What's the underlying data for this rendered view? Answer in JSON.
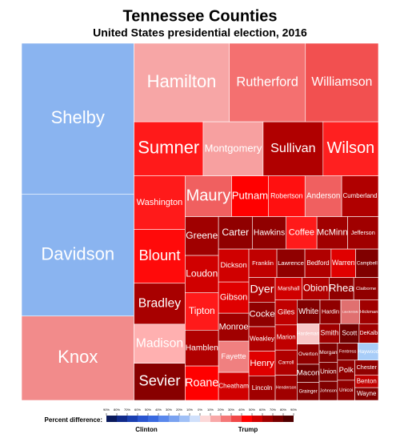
{
  "chart_data": {
    "type": "treemap",
    "title": "Tennessee Counties",
    "subtitle": "United States presidential election, 2016",
    "categories": [
      "Shelby",
      "Davidson",
      "Knox",
      "Hamilton",
      "Rutherford",
      "Williamson",
      "Sumner",
      "Montgomery",
      "Sullivan",
      "Wilson",
      "Washington",
      "Blount",
      "Bradley",
      "Madison",
      "Sevier",
      "Maury",
      "Putnam",
      "Robertson",
      "Anderson",
      "Cumberland",
      "Greene",
      "Loudon",
      "Tipton",
      "Hamblen",
      "Roane",
      "Carter",
      "Hawkins",
      "Coffee",
      "McMinn",
      "Jefferson",
      "Dickson",
      "Gibson",
      "Monroe",
      "Fayette",
      "Cheatham",
      "Franklin",
      "Lawrence",
      "Bedford",
      "Warren",
      "Campbell",
      "Dyer",
      "Cocke",
      "Weakley",
      "Henry",
      "Lincoln",
      "Marshall",
      "Obion",
      "Rhea",
      "Claiborne",
      "Giles",
      "Marion",
      "Carroll",
      "Henderson",
      "White",
      "Hardin",
      "Lauderdale",
      "Hickman",
      "Hardeman",
      "Overton",
      "Macon",
      "Grainger",
      "Smith",
      "Scott",
      "DeKalb",
      "Morgan",
      "Union",
      "Johnson",
      "Fentress",
      "Haywood",
      "Polk",
      "Unicoi",
      "Chester",
      "Benton",
      "Wayne"
    ],
    "values": [
      340,
      275,
      190,
      150,
      120,
      115,
      75,
      65,
      65,
      60,
      55,
      55,
      42,
      40,
      38,
      38,
      30,
      30,
      30,
      30,
      26,
      25,
      25,
      24,
      23,
      22,
      22,
      20,
      20,
      20,
      20,
      19,
      17,
      19,
      17,
      16,
      16,
      15,
      14,
      13,
      13,
      13,
      13,
      13,
      13,
      12,
      12,
      11,
      11,
      11,
      11,
      11,
      11,
      11,
      10,
      9,
      9,
      9,
      9,
      8,
      8,
      8,
      7.5,
      7.5,
      7,
      7,
      7,
      7,
      7,
      7,
      7,
      7,
      6,
      6
    ],
    "colors": [
      "#8ab4f0",
      "#8ab4f0",
      "#f28b8b",
      "#f7a6a6",
      "#f47070",
      "#f25050",
      "#ff1a1a",
      "#f7a0a0",
      "#b00000",
      "#ff2020",
      "#ff1a1a",
      "#ff0a0a",
      "#a80000",
      "#ffb0b0",
      "#880000",
      "#f06060",
      "#ff0000",
      "#ff1010",
      "#f06060",
      "#b00000",
      "#a00000",
      "#d00000",
      "#ff1a1a",
      "#b00000",
      "#ff0000",
      "#900000",
      "#900000",
      "#ff1a1a",
      "#a00000",
      "#a00000",
      "#d00000",
      "#e00000",
      "#a00000",
      "#f08080",
      "#d00000",
      "#c00000",
      "#900000",
      "#b00000",
      "#e00000",
      "#800000",
      "#b00000",
      "#900000",
      "#b00000",
      "#e00000",
      "#a00000",
      "#d00000",
      "#b00000",
      "#900000",
      "#900000",
      "#c00000",
      "#c00000",
      "#b00000",
      "#a00000",
      "#800000",
      "#900000",
      "#e07070",
      "#a00000",
      "#f8c8c8",
      "#900000",
      "#700000",
      "#800000",
      "#a00000",
      "#700000",
      "#a00000",
      "#800000",
      "#800000",
      "#800000",
      "#800000",
      "#a8cdf8",
      "#900000",
      "#900000",
      "#900000",
      "#c00000",
      "#800000"
    ],
    "legend": {
      "title": "Percent difference:",
      "left_label": "Clinton",
      "right_label": "Trump",
      "ticks": [
        {
          "value": -90,
          "label": "90%"
        },
        {
          "value": -80,
          "label": "80%"
        },
        {
          "value": -70,
          "label": "70%"
        },
        {
          "value": -60,
          "label": "60%"
        },
        {
          "value": -50,
          "label": "50%"
        },
        {
          "value": -40,
          "label": "40%"
        },
        {
          "value": -30,
          "label": "30%"
        },
        {
          "value": -20,
          "label": "20%"
        },
        {
          "value": -10,
          "label": "10%"
        },
        {
          "value": 0,
          "label": "0%"
        },
        {
          "value": 10,
          "label": "10%"
        },
        {
          "value": 20,
          "label": "20%"
        },
        {
          "value": 30,
          "label": "30%"
        },
        {
          "value": 40,
          "label": "40%"
        },
        {
          "value": 50,
          "label": "50%"
        },
        {
          "value": 60,
          "label": "60%"
        },
        {
          "value": 70,
          "label": "70%"
        },
        {
          "value": 80,
          "label": "80%"
        },
        {
          "value": 90,
          "label": "90%"
        }
      ],
      "colors": [
        "#0a1a5c",
        "#102a8a",
        "#1a3fb0",
        "#2a55d0",
        "#3a6ae0",
        "#5a88ec",
        "#7aa2f0",
        "#a0c0f6",
        "#d0e0fb",
        "#fcd8d8",
        "#f8a8a8",
        "#f47878",
        "#f04848",
        "#ff0000",
        "#d00000",
        "#a00000",
        "#780000",
        "#500000"
      ]
    }
  }
}
